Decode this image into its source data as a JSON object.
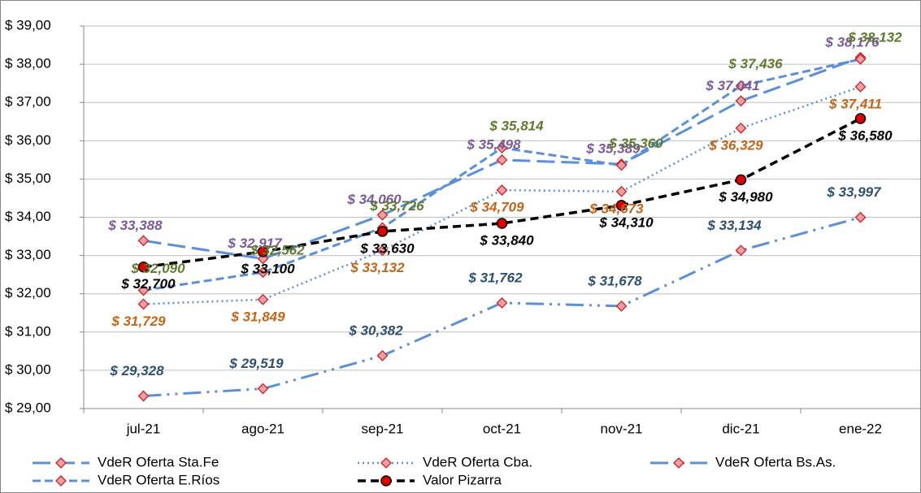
{
  "chart_data": {
    "type": "line",
    "categories": [
      "jul-21",
      "ago-21",
      "sep-21",
      "oct-21",
      "nov-21",
      "dic-21",
      "ene-22"
    ],
    "ylim": [
      29,
      39
    ],
    "yticks": [
      {
        "value": 29,
        "label": "$ 29,00"
      },
      {
        "value": 30,
        "label": "$ 30,00"
      },
      {
        "value": 31,
        "label": "$ 31,00"
      },
      {
        "value": 32,
        "label": "$ 32,00"
      },
      {
        "value": 33,
        "label": "$ 33,00"
      },
      {
        "value": 34,
        "label": "$ 34,00"
      },
      {
        "value": 35,
        "label": "$ 35,00"
      },
      {
        "value": 36,
        "label": "$ 36,00"
      },
      {
        "value": 37,
        "label": "$ 37,00"
      },
      {
        "value": 38,
        "label": "$ 38,00"
      },
      {
        "value": 39,
        "label": "$ 39,00"
      }
    ],
    "grid": true,
    "series": [
      {
        "name": "VdeR Oferta Sta.Fe",
        "color": "#5b8fd6",
        "label_color": "#7a5a9a",
        "values": [
          33.388,
          32.917,
          34.06,
          35.498,
          35.389,
          37.041,
          38.176
        ],
        "value_labels": [
          "$ 33,388",
          "$ 32,917",
          "$ 34,060",
          "$ 35,498",
          "$ 35,389",
          "$ 37,041",
          "$ 38,176"
        ]
      },
      {
        "name": "VdeR Oferta Cba.",
        "color": "#5b8fd6",
        "label_color": "#c0661a",
        "values": [
          31.729,
          31.849,
          33.132,
          34.709,
          34.673,
          36.329,
          37.411
        ],
        "value_labels": [
          "$ 31,729",
          "$ 31,849",
          "$ 33,132",
          "$ 34,709",
          "$ 34,673",
          "$ 36,329",
          "$ 37,411"
        ]
      },
      {
        "name": "VdeR Oferta Bs.As.",
        "color": "#5b8fd6",
        "label_color": "#2f4f6f",
        "values": [
          29.328,
          29.519,
          30.382,
          31.762,
          31.678,
          33.134,
          33.997
        ],
        "value_labels": [
          "$ 29,328",
          "$ 29,519",
          "$ 30,382",
          "$ 31,762",
          "$ 31,678",
          "$ 33,134",
          "$ 33,997"
        ]
      },
      {
        "name": "VdeR Oferta E.Ríos",
        "color": "#5b8fd6",
        "label_color": "#5f7a2e",
        "values": [
          32.09,
          32.562,
          33.726,
          35.814,
          35.36,
          37.436,
          38.132
        ],
        "value_labels": [
          "$ 32,090",
          "$ 32,562",
          "$ 33,726",
          "$ 35,814",
          "$ 35,360",
          "$ 37,436",
          "$ 38,132"
        ]
      },
      {
        "name": "Valor Pizarra",
        "color": "#000000",
        "label_color": "#000000",
        "values": [
          32.7,
          33.1,
          33.63,
          33.84,
          34.31,
          34.98,
          36.58
        ],
        "value_labels": [
          "$ 32,700",
          "$ 33,100",
          "$ 33,630",
          "$ 33,840",
          "$ 34,310",
          "$ 34,980",
          "$ 36,580"
        ]
      }
    ]
  }
}
